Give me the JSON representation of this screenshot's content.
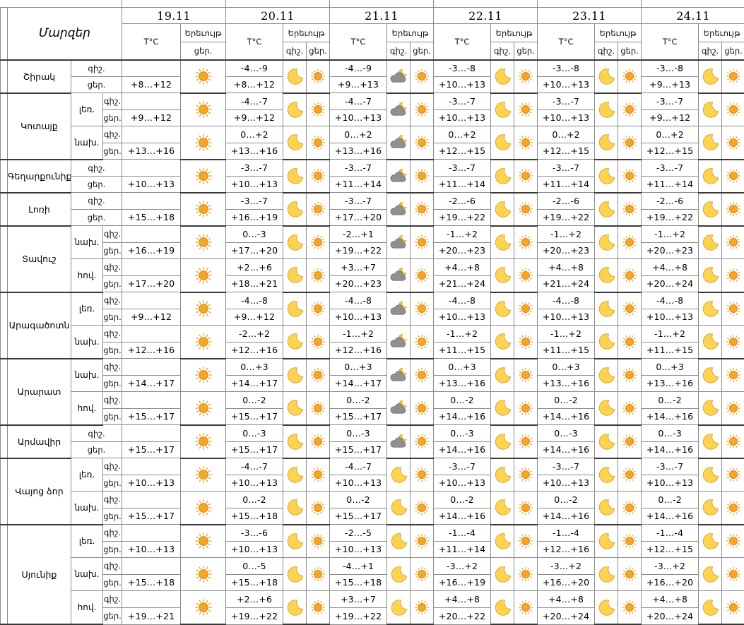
{
  "table": {
    "region_header": "Մարզեր",
    "dates": [
      "19.11",
      "20.11",
      "21.11",
      "22.11",
      "23.11",
      "24.11"
    ],
    "temp_label": "T°C",
    "phenomenon_label": "Երեւույթ",
    "night_label": "գիշ.",
    "day_label": "ցեր.",
    "icon_legend": {
      "sun": "sun-icon",
      "moon": "moon-icon",
      "cloud-moon": "cloud-moon-icon"
    },
    "colors": {
      "border_light": "#8b8b8b",
      "border_dark": "#3a3a3a",
      "sun": "#F5A623",
      "moon": "#FFD24F",
      "cloud": "#909090"
    },
    "regions": [
      {
        "name": "Շիրակ",
        "zones": [
          {
            "zone": "",
            "night": [
              "",
              "-4...-9",
              "-4...-9",
              "-3...-8",
              "-3...-8",
              "-3...-8"
            ],
            "day": [
              "+8...+12",
              "+8...+12",
              "+9...+13",
              "+10...+13",
              "+10...+13",
              "+9...+13"
            ],
            "icons_night": [
              "",
              "moon",
              "cloud-moon",
              "moon",
              "moon",
              "moon"
            ],
            "icons_day": [
              "sun",
              "sun",
              "sun",
              "sun",
              "sun",
              "sun"
            ]
          }
        ]
      },
      {
        "name": "Կոտայք",
        "zones": [
          {
            "zone": "լեռ.",
            "night": [
              "",
              "-4...-7",
              "-4...-7",
              "-3...-7",
              "-3...-7",
              "-3...-7"
            ],
            "day": [
              "+9...+12",
              "+9...+12",
              "+10...+13",
              "+10...+13",
              "+10...+13",
              "+9...+12"
            ],
            "icons_night": [
              "",
              "moon",
              "cloud-moon",
              "moon",
              "moon",
              "moon"
            ],
            "icons_day": [
              "sun",
              "sun",
              "sun",
              "sun",
              "sun",
              "sun"
            ]
          },
          {
            "zone": "նախ.",
            "night": [
              "",
              "0...+2",
              "0...+2",
              "0...+2",
              "0...+2",
              "0...+2"
            ],
            "day": [
              "+13...+16",
              "+13...+16",
              "+13...+16",
              "+12...+15",
              "+12...+15",
              "+12...+15"
            ],
            "icons_night": [
              "",
              "moon",
              "cloud-moon",
              "moon",
              "moon",
              "moon"
            ],
            "icons_day": [
              "sun",
              "sun",
              "sun",
              "sun",
              "sun",
              "sun"
            ]
          }
        ]
      },
      {
        "name": "Գեղարքունիք",
        "zones": [
          {
            "zone": "",
            "night": [
              "",
              "-3...-7",
              "-3...-7",
              "-3...-7",
              "-3...-7",
              "-3...-7"
            ],
            "day": [
              "+10...+13",
              "+10...+13",
              "+11...+14",
              "+11...+14",
              "+11...+14",
              "+11...+14"
            ],
            "icons_night": [
              "",
              "moon",
              "cloud-moon",
              "moon",
              "moon",
              "moon"
            ],
            "icons_day": [
              "sun",
              "sun",
              "sun",
              "sun",
              "sun",
              "sun"
            ]
          }
        ]
      },
      {
        "name": "Լոռի",
        "zones": [
          {
            "zone": "",
            "night": [
              "",
              "-3...-7",
              "-3...-7",
              "-2...-6",
              "-2...-6",
              "-2...-6"
            ],
            "day": [
              "+15...+18",
              "+16...+19",
              "+17...+20",
              "+19...+22",
              "+19...+22",
              "+19...+22"
            ],
            "icons_night": [
              "",
              "moon",
              "cloud-moon",
              "moon",
              "moon",
              "moon"
            ],
            "icons_day": [
              "sun",
              "sun",
              "sun",
              "sun",
              "sun",
              "sun"
            ]
          }
        ]
      },
      {
        "name": "Տավուշ",
        "zones": [
          {
            "zone": "նախ.",
            "night": [
              "",
              "0...-3",
              "-2...+1",
              "-1...+2",
              "-1...+2",
              "-1...+2"
            ],
            "day": [
              "+16...+19",
              "+17...+20",
              "+19...+22",
              "+20...+23",
              "+20...+23",
              "+20...+23"
            ],
            "icons_night": [
              "",
              "moon",
              "cloud-moon",
              "moon",
              "moon",
              "moon"
            ],
            "icons_day": [
              "sun",
              "sun",
              "sun",
              "sun",
              "sun",
              "sun"
            ]
          },
          {
            "zone": "հով.",
            "night": [
              "",
              "+2...+6",
              "+3...+7",
              "+4...+8",
              "+4...+8",
              "+4...+8"
            ],
            "day": [
              "+17...+20",
              "+18...+21",
              "+20...+23",
              "+21...+24",
              "+21...+24",
              "+20...+24"
            ],
            "icons_night": [
              "",
              "moon",
              "cloud-moon",
              "moon",
              "moon",
              "moon"
            ],
            "icons_day": [
              "sun",
              "sun",
              "sun",
              "sun",
              "sun",
              "sun"
            ]
          }
        ]
      },
      {
        "name": "Արագածոտն",
        "zones": [
          {
            "zone": "լեռ.",
            "night": [
              "",
              "-4...-8",
              "-4...-8",
              "-4...-8",
              "-4...-8",
              "-4...-8"
            ],
            "day": [
              "+9...+12",
              "+9...+12",
              "+10...+13",
              "+10...+13",
              "+10...+13",
              "+10...+13"
            ],
            "icons_night": [
              "",
              "moon",
              "cloud-moon",
              "moon",
              "moon",
              "moon"
            ],
            "icons_day": [
              "sun",
              "sun",
              "sun",
              "sun",
              "sun",
              "sun"
            ]
          },
          {
            "zone": "նախ.",
            "night": [
              "",
              "-2...+2",
              "-1...+2",
              "-1...+2",
              "-1...+2",
              "-1...+2"
            ],
            "day": [
              "+12...+16",
              "+12...+16",
              "+12...+16",
              "+11...+15",
              "+11...+15",
              "+11...+15"
            ],
            "icons_night": [
              "",
              "moon",
              "cloud-moon",
              "moon",
              "moon",
              "moon"
            ],
            "icons_day": [
              "sun",
              "sun",
              "sun",
              "sun",
              "sun",
              "sun"
            ]
          }
        ]
      },
      {
        "name": "Արարատ",
        "zones": [
          {
            "zone": "նախ.",
            "night": [
              "",
              "0...+3",
              "0...+3",
              "0...+3",
              "0...+3",
              "0...+3"
            ],
            "day": [
              "+14...+17",
              "+14...+17",
              "+14...+17",
              "+13...+16",
              "+13...+16",
              "+13...+16"
            ],
            "icons_night": [
              "",
              "moon",
              "cloud-moon",
              "moon",
              "moon",
              "moon"
            ],
            "icons_day": [
              "sun",
              "sun",
              "sun",
              "sun",
              "sun",
              "sun"
            ]
          },
          {
            "zone": "հով.",
            "night": [
              "",
              "0...-2",
              "0...-2",
              "0...-2",
              "0...-2",
              "0...-2"
            ],
            "day": [
              "+15...+17",
              "+15...+17",
              "+15...+17",
              "+14...+16",
              "+14...+16",
              "+14...+16"
            ],
            "icons_night": [
              "",
              "moon",
              "cloud-moon",
              "moon",
              "moon",
              "moon"
            ],
            "icons_day": [
              "sun",
              "sun",
              "sun",
              "sun",
              "sun",
              "sun"
            ]
          }
        ]
      },
      {
        "name": "Արմավիր",
        "zones": [
          {
            "zone": "",
            "night": [
              "",
              "0...-3",
              "0...-3",
              "0...-3",
              "0...-3",
              "0...-3"
            ],
            "day": [
              "+15...+17",
              "+15...+17",
              "+15...+17",
              "+14...+16",
              "+14...+16",
              "+14...+16"
            ],
            "icons_night": [
              "",
              "moon",
              "cloud-moon",
              "moon",
              "moon",
              "moon"
            ],
            "icons_day": [
              "sun",
              "sun",
              "sun",
              "sun",
              "sun",
              "sun"
            ]
          }
        ]
      },
      {
        "name": "Վայոց ձոր",
        "zones": [
          {
            "zone": "լեռ.",
            "night": [
              "",
              "-4...-7",
              "-4...-7",
              "-3...-7",
              "-3...-7",
              "-3...-7"
            ],
            "day": [
              "+10...+13",
              "+10...+13",
              "+10...+13",
              "+10...+13",
              "+10...+13",
              "+10...+13"
            ],
            "icons_night": [
              "",
              "moon",
              "moon",
              "moon",
              "moon",
              "moon"
            ],
            "icons_day": [
              "sun",
              "sun",
              "sun",
              "sun",
              "sun",
              "sun"
            ]
          },
          {
            "zone": "նախ.",
            "night": [
              "",
              "0...-2",
              "0...-2",
              "0...-2",
              "0...-2",
              "0...-2"
            ],
            "day": [
              "+15...+17",
              "+15...+18",
              "+15...+17",
              "+14...+16",
              "+14...+16",
              "+14...+16"
            ],
            "icons_night": [
              "",
              "moon",
              "moon",
              "moon",
              "moon",
              "moon"
            ],
            "icons_day": [
              "sun",
              "sun",
              "sun",
              "sun",
              "sun",
              "sun"
            ]
          }
        ]
      },
      {
        "name": "Սյունիք",
        "zones": [
          {
            "zone": "լեռ.",
            "night": [
              "",
              "-3...-6",
              "-2...-5",
              "-1...-4",
              "-1...-4",
              "-1...-4"
            ],
            "day": [
              "+10...+13",
              "+10...+13",
              "+10...+13",
              "+11...+14",
              "+12...+16",
              "+12...+15"
            ],
            "icons_night": [
              "",
              "moon",
              "moon",
              "moon",
              "moon",
              "moon"
            ],
            "icons_day": [
              "sun",
              "sun",
              "sun",
              "sun",
              "sun",
              "sun"
            ]
          },
          {
            "zone": "նախ.",
            "night": [
              "",
              "0...-5",
              "-4...+1",
              "-3...+2",
              "-3...+2",
              "-3...+2"
            ],
            "day": [
              "+15...+18",
              "+15...+18",
              "+15...+18",
              "+16...+19",
              "+16...+20",
              "+16...+20"
            ],
            "icons_night": [
              "",
              "moon",
              "moon",
              "moon",
              "moon",
              "moon"
            ],
            "icons_day": [
              "sun",
              "sun",
              "sun",
              "sun",
              "sun",
              "sun"
            ]
          },
          {
            "zone": "հով.",
            "night": [
              "",
              "+2...+6",
              "+3...+7",
              "+4...+8",
              "+4...+8",
              "+4...+8"
            ],
            "day": [
              "+19...+21",
              "+19...+22",
              "+19...+22",
              "+20...+22",
              "+20...+24",
              "+20...+24"
            ],
            "icons_night": [
              "",
              "moon",
              "moon",
              "moon",
              "moon",
              "moon"
            ],
            "icons_day": [
              "sun",
              "sun",
              "sun",
              "sun",
              "sun",
              "sun"
            ]
          }
        ]
      }
    ]
  }
}
